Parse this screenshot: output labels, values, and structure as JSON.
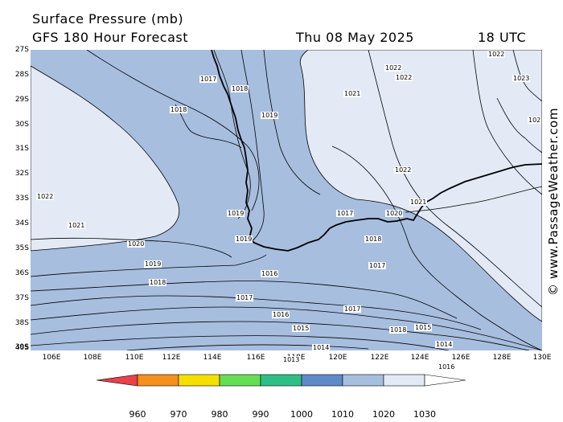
{
  "header": {
    "title": "Surface Pressure (mb)",
    "subtitle": "GFS 180 Hour Forecast",
    "date": "Thu 08 May 2025",
    "time": "18 UTC"
  },
  "watermark": "© www.PassageWeather.com",
  "axes": {
    "lat_labels": [
      "27S",
      "28S",
      "29S",
      "30S",
      "31S",
      "32S",
      "33S",
      "34S",
      "35S",
      "36S",
      "37S",
      "38S",
      "39S",
      "40S"
    ],
    "lon_labels": [
      "106E",
      "108E",
      "110E",
      "112E",
      "114E",
      "116E",
      "118E",
      "120E",
      "122E",
      "124E",
      "126E",
      "128E",
      "130E"
    ]
  },
  "colorbar": {
    "labels": [
      "960",
      "970",
      "980",
      "990",
      "1000",
      "1010",
      "1020",
      "1030"
    ],
    "colors": [
      "#e8424a",
      "#f58f1e",
      "#f4e000",
      "#66dd55",
      "#2fbf86",
      "#5f8ac9",
      "#a7bedf",
      "#e3eaf6"
    ]
  },
  "map": {
    "fill_colors": {
      "band_1010_1020": "#a7bedf",
      "band_1020_1030": "#e3eaf6",
      "coastline": "#000000",
      "isobar": "#000000"
    },
    "isobar_labels": [
      "1017",
      "1018",
      "1018",
      "1019",
      "1022",
      "1021",
      "1020",
      "1019",
      "1019",
      "1019",
      "1018",
      "1018",
      "1017",
      "1017",
      "1016",
      "1016",
      "1015",
      "1014",
      "1013",
      "1022",
      "1022",
      "1022",
      "1021",
      "1023",
      "102",
      "1022",
      "1021",
      "1020",
      "1018",
      "1017",
      "1017",
      "1016",
      "1015",
      "1014"
    ]
  }
}
